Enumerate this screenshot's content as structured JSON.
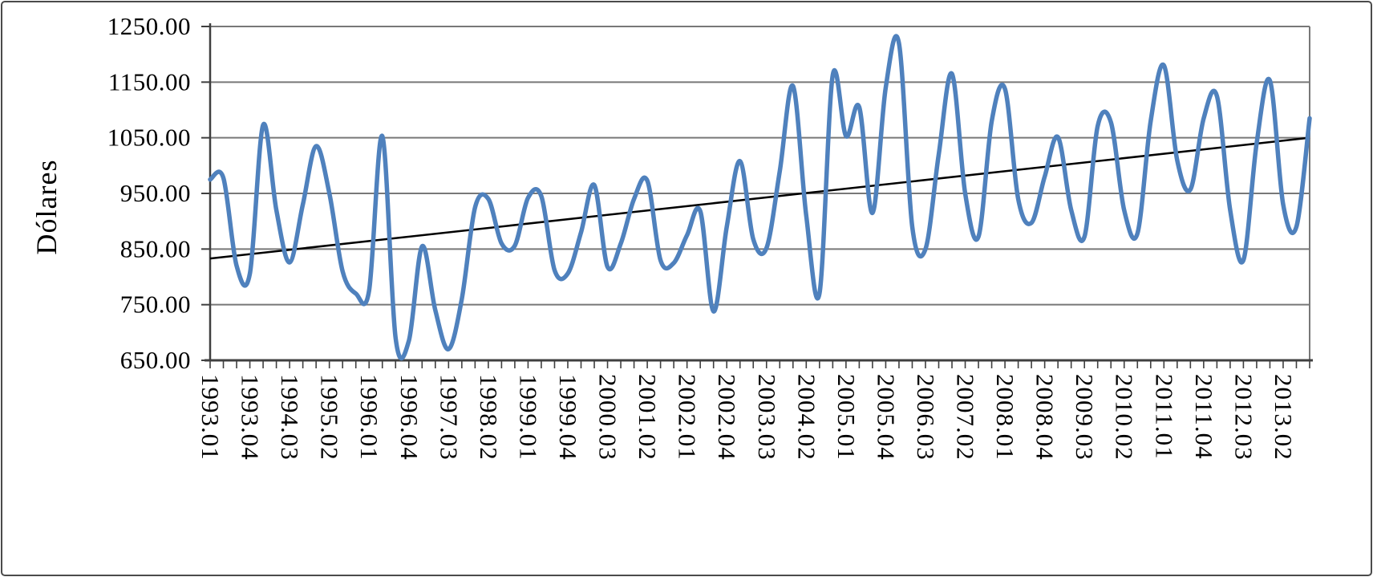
{
  "figure": {
    "background": "#ffffff",
    "outer_border_color": "#4a4a4a"
  },
  "chart_data": {
    "type": "line",
    "title": "",
    "xlabel": "",
    "ylabel": "Dólares",
    "grid": true,
    "legend": "none",
    "y_axis": {
      "min": 650,
      "max": 1250,
      "step": 100,
      "tick_labels": [
        "1250.00",
        "1150.00",
        "1050.00",
        "950.00",
        "850.00",
        "750.00",
        "650.00"
      ]
    },
    "x_axis": {
      "label_every": 3,
      "shown_labels": [
        "1993.01",
        "1993.04",
        "1994.03",
        "1995.02",
        "1996.01",
        "1996.04",
        "1997.03",
        "1998.02",
        "1999.01",
        "1999.04",
        "2000.03",
        "2001.02",
        "2002.01",
        "2002.04",
        "2003.03",
        "2004.02",
        "2005.01",
        "2005.04",
        "2006.03",
        "2007.02",
        "2008.01",
        "2008.04",
        "2009.03",
        "2010.02",
        "2011.01",
        "2011.04",
        "2012.03",
        "2013.02"
      ],
      "categories": [
        "1993.01",
        "1993.02",
        "1993.03",
        "1993.04",
        "1994.01",
        "1994.02",
        "1994.03",
        "1994.04",
        "1995.01",
        "1995.02",
        "1995.03",
        "1995.04",
        "1996.01",
        "1996.02",
        "1996.03",
        "1996.04",
        "1997.01",
        "1997.02",
        "1997.03",
        "1997.04",
        "1998.01",
        "1998.02",
        "1998.03",
        "1998.04",
        "1999.01",
        "1999.02",
        "1999.03",
        "1999.04",
        "2000.01",
        "2000.02",
        "2000.03",
        "2000.04",
        "2001.01",
        "2001.02",
        "2001.03",
        "2001.04",
        "2002.01",
        "2002.02",
        "2002.03",
        "2002.04",
        "2003.01",
        "2003.02",
        "2003.03",
        "2003.04",
        "2004.01",
        "2004.02",
        "2004.03",
        "2004.04",
        "2005.01",
        "2005.02",
        "2005.03",
        "2005.04",
        "2006.01",
        "2006.02",
        "2006.03",
        "2006.04",
        "2007.01",
        "2007.02",
        "2007.03",
        "2007.04",
        "2008.01",
        "2008.02",
        "2008.03",
        "2008.04",
        "2009.01",
        "2009.02",
        "2009.03",
        "2009.04",
        "2010.01",
        "2010.02",
        "2010.03",
        "2010.04",
        "2011.01",
        "2011.02",
        "2011.03",
        "2011.04",
        "2012.01",
        "2012.02",
        "2012.03",
        "2012.04",
        "2013.01",
        "2013.02",
        "2013.03",
        "2013.04"
      ]
    },
    "series": [
      {
        "name": "Dólares",
        "type": "smooth-line",
        "color": "#4F81BD",
        "values": [
          975,
          978,
          820,
          806,
          1073,
          920,
          826,
          930,
          1035,
          950,
          810,
          770,
          775,
          1053,
          690,
          685,
          855,
          740,
          670,
          760,
          925,
          940,
          860,
          856,
          942,
          945,
          812,
          806,
          880,
          965,
          818,
          860,
          940,
          973,
          830,
          825,
          875,
          918,
          738,
          890,
          1008,
          868,
          852,
          990,
          1143,
          910,
          770,
          1162,
          1053,
          1105,
          915,
          1140,
          1220,
          890,
          850,
          1020,
          1165,
          950,
          872,
          1080,
          1138,
          940,
          897,
          980,
          1051,
          920,
          872,
          1071,
          1078,
          920,
          878,
          1080,
          1180,
          1010,
          957,
          1085,
          1125,
          920,
          830,
          1040,
          1153,
          930,
          890,
          1085
        ]
      },
      {
        "name": "Tendencia lineal",
        "type": "straight-line",
        "color": "#000000",
        "start_value": 833,
        "end_value": 1050
      }
    ],
    "style": {
      "grid_color": "#787878",
      "plot_border_color": "#787878",
      "axis_color": "#3f3f3f",
      "tick_color": "#3f3f3f",
      "text_color": "#000000",
      "line_width": 5.5,
      "trend_width": 2.5
    }
  }
}
